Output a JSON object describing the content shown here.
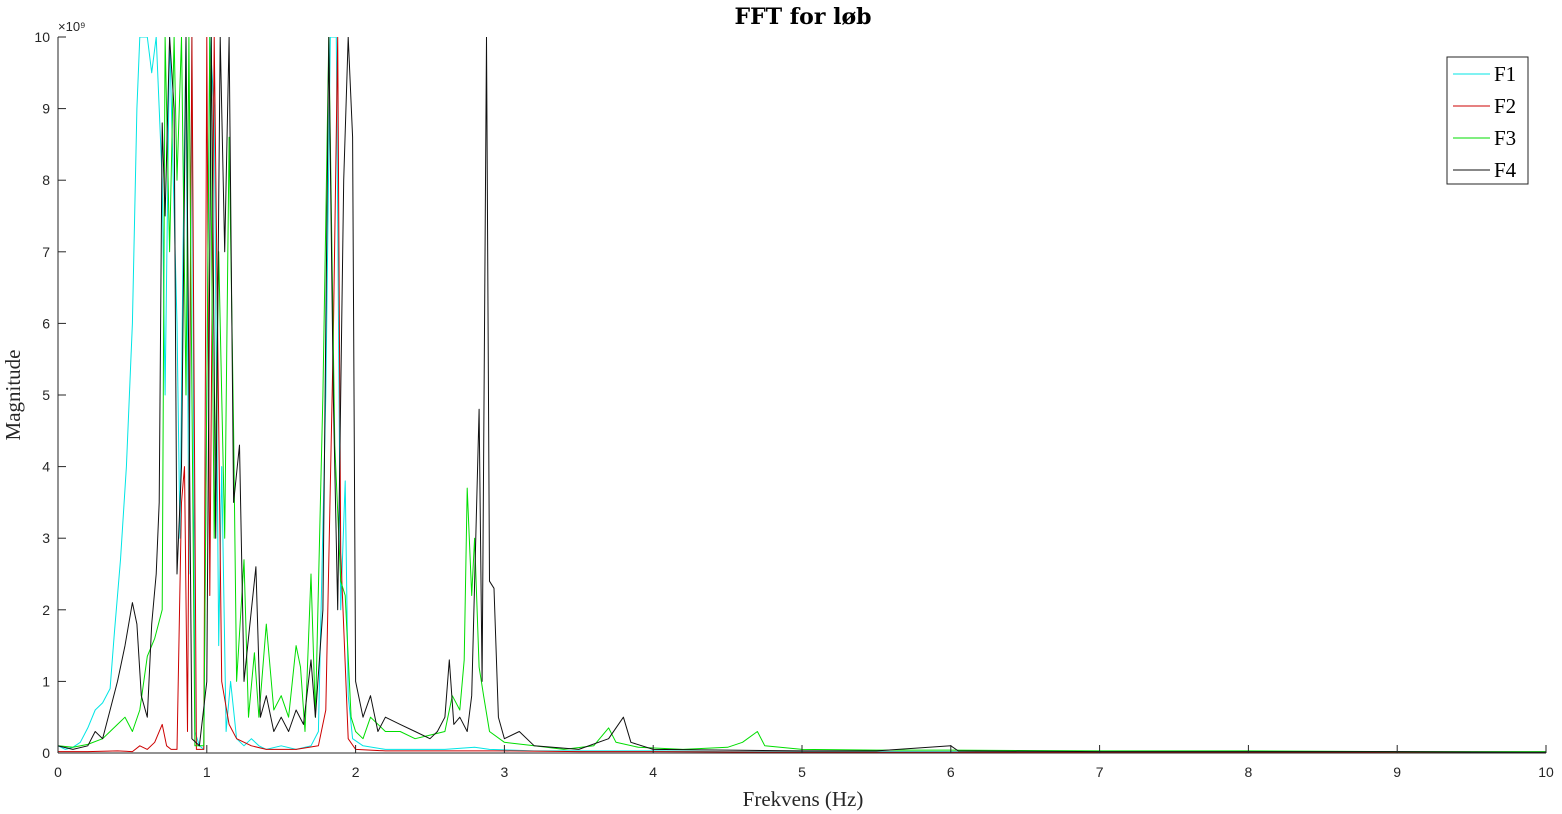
{
  "chart_data": {
    "type": "line",
    "title": "FFT for løb",
    "xlabel": "Frekvens (Hz)",
    "ylabel": "Magnitude",
    "xlim": [
      0,
      10
    ],
    "ylim": [
      0,
      10
    ],
    "y_exponent_label": "×10⁹",
    "x_ticks": [
      "0",
      "1",
      "2",
      "3",
      "4",
      "5",
      "6",
      "7",
      "8",
      "9",
      "10"
    ],
    "y_ticks": [
      "0",
      "1",
      "2",
      "3",
      "4",
      "5",
      "6",
      "7",
      "8",
      "9",
      "10"
    ],
    "grid": false,
    "legend_position": "top-right",
    "series": [
      {
        "name": "F1",
        "color": "#00e5e5",
        "points": [
          [
            0,
            0.1
          ],
          [
            0.05,
            0.05
          ],
          [
            0.1,
            0.08
          ],
          [
            0.15,
            0.15
          ],
          [
            0.2,
            0.35
          ],
          [
            0.25,
            0.6
          ],
          [
            0.3,
            0.7
          ],
          [
            0.35,
            0.9
          ],
          [
            0.38,
            1.7
          ],
          [
            0.42,
            2.7
          ],
          [
            0.46,
            4
          ],
          [
            0.5,
            6
          ],
          [
            0.53,
            9
          ],
          [
            0.55,
            10
          ],
          [
            0.6,
            10
          ],
          [
            0.63,
            9.5
          ],
          [
            0.66,
            10
          ],
          [
            0.7,
            8
          ],
          [
            0.72,
            5
          ],
          [
            0.75,
            10
          ],
          [
            0.8,
            6
          ],
          [
            0.82,
            3
          ],
          [
            0.84,
            7
          ],
          [
            0.86,
            10
          ],
          [
            0.88,
            2.5
          ],
          [
            0.9,
            10
          ],
          [
            0.92,
            0.3
          ],
          [
            0.95,
            0.1
          ],
          [
            0.98,
            0.05
          ],
          [
            1.02,
            10
          ],
          [
            1.05,
            9
          ],
          [
            1.08,
            1.5
          ],
          [
            1.1,
            4
          ],
          [
            1.13,
            0.3
          ],
          [
            1.16,
            1
          ],
          [
            1.2,
            0.2
          ],
          [
            1.25,
            0.1
          ],
          [
            1.3,
            0.2
          ],
          [
            1.35,
            0.1
          ],
          [
            1.4,
            0.05
          ],
          [
            1.5,
            0.1
          ],
          [
            1.6,
            0.05
          ],
          [
            1.7,
            0.1
          ],
          [
            1.75,
            0.3
          ],
          [
            1.8,
            5
          ],
          [
            1.83,
            10
          ],
          [
            1.87,
            10
          ],
          [
            1.9,
            2
          ],
          [
            1.93,
            3.8
          ],
          [
            1.95,
            0.8
          ],
          [
            1.98,
            0.2
          ],
          [
            2.05,
            0.1
          ],
          [
            2.2,
            0.05
          ],
          [
            2.4,
            0.05
          ],
          [
            2.6,
            0.05
          ],
          [
            2.8,
            0.08
          ],
          [
            2.9,
            0.05
          ],
          [
            3.2,
            0.03
          ],
          [
            3.5,
            0.03
          ],
          [
            4,
            0.03
          ],
          [
            4.5,
            0.02
          ],
          [
            5,
            0.02
          ],
          [
            6,
            0.02
          ],
          [
            7,
            0.01
          ],
          [
            8,
            0.01
          ],
          [
            9,
            0.01
          ],
          [
            10,
            0.01
          ]
        ]
      },
      {
        "name": "F2",
        "color": "#cc0000",
        "points": [
          [
            0,
            0.02
          ],
          [
            0.2,
            0.02
          ],
          [
            0.4,
            0.03
          ],
          [
            0.5,
            0.02
          ],
          [
            0.55,
            0.1
          ],
          [
            0.6,
            0.05
          ],
          [
            0.65,
            0.15
          ],
          [
            0.7,
            0.4
          ],
          [
            0.73,
            0.1
          ],
          [
            0.76,
            0.05
          ],
          [
            0.8,
            0.05
          ],
          [
            0.83,
            3.5
          ],
          [
            0.85,
            4
          ],
          [
            0.87,
            0.3
          ],
          [
            0.9,
            10
          ],
          [
            0.93,
            0.05
          ],
          [
            0.98,
            0.05
          ],
          [
            1.0,
            10
          ],
          [
            1.02,
            2.2
          ],
          [
            1.05,
            10
          ],
          [
            1.08,
            4.6
          ],
          [
            1.1,
            1
          ],
          [
            1.15,
            0.4
          ],
          [
            1.2,
            0.2
          ],
          [
            1.3,
            0.1
          ],
          [
            1.4,
            0.05
          ],
          [
            1.6,
            0.05
          ],
          [
            1.75,
            0.1
          ],
          [
            1.8,
            0.6
          ],
          [
            1.85,
            5.8
          ],
          [
            1.88,
            10
          ],
          [
            1.9,
            2.8
          ],
          [
            1.95,
            0.2
          ],
          [
            2.0,
            0.05
          ],
          [
            2.2,
            0.03
          ],
          [
            2.5,
            0.03
          ],
          [
            2.8,
            0.03
          ],
          [
            3,
            0.03
          ],
          [
            3.5,
            0.02
          ],
          [
            4,
            0.02
          ],
          [
            5,
            0.01
          ],
          [
            6,
            0.01
          ],
          [
            7,
            0.01
          ],
          [
            8,
            0.01
          ],
          [
            9,
            0.01
          ],
          [
            10,
            0.01
          ]
        ]
      },
      {
        "name": "F3",
        "color": "#00dd00",
        "points": [
          [
            0,
            0.1
          ],
          [
            0.1,
            0.08
          ],
          [
            0.2,
            0.12
          ],
          [
            0.3,
            0.2
          ],
          [
            0.35,
            0.3
          ],
          [
            0.4,
            0.4
          ],
          [
            0.45,
            0.5
          ],
          [
            0.5,
            0.3
          ],
          [
            0.55,
            0.6
          ],
          [
            0.6,
            1.35
          ],
          [
            0.65,
            1.6
          ],
          [
            0.7,
            2
          ],
          [
            0.72,
            10
          ],
          [
            0.75,
            7
          ],
          [
            0.78,
            10
          ],
          [
            0.8,
            8
          ],
          [
            0.83,
            10
          ],
          [
            0.86,
            5
          ],
          [
            0.88,
            10
          ],
          [
            0.92,
            0.1
          ],
          [
            0.98,
            0.1
          ],
          [
            1.02,
            10
          ],
          [
            1.05,
            3
          ],
          [
            1.08,
            7
          ],
          [
            1.12,
            3
          ],
          [
            1.15,
            8.6
          ],
          [
            1.18,
            4.5
          ],
          [
            1.2,
            1
          ],
          [
            1.25,
            2.7
          ],
          [
            1.28,
            0.5
          ],
          [
            1.32,
            1.4
          ],
          [
            1.35,
            0.5
          ],
          [
            1.4,
            1.8
          ],
          [
            1.45,
            0.6
          ],
          [
            1.5,
            0.8
          ],
          [
            1.55,
            0.5
          ],
          [
            1.6,
            1.5
          ],
          [
            1.63,
            1.2
          ],
          [
            1.66,
            0.3
          ],
          [
            1.7,
            2.5
          ],
          [
            1.73,
            0.5
          ],
          [
            1.78,
            5
          ],
          [
            1.82,
            10
          ],
          [
            1.86,
            4.3
          ],
          [
            1.9,
            2.4
          ],
          [
            1.93,
            2.2
          ],
          [
            1.97,
            0.5
          ],
          [
            2.0,
            0.3
          ],
          [
            2.05,
            0.2
          ],
          [
            2.1,
            0.5
          ],
          [
            2.2,
            0.3
          ],
          [
            2.3,
            0.3
          ],
          [
            2.4,
            0.2
          ],
          [
            2.5,
            0.25
          ],
          [
            2.6,
            0.3
          ],
          [
            2.65,
            0.8
          ],
          [
            2.7,
            0.6
          ],
          [
            2.73,
            1.3
          ],
          [
            2.75,
            3.7
          ],
          [
            2.78,
            2.2
          ],
          [
            2.8,
            3
          ],
          [
            2.83,
            1.2
          ],
          [
            2.86,
            0.8
          ],
          [
            2.9,
            0.3
          ],
          [
            3.0,
            0.15
          ],
          [
            3.2,
            0.1
          ],
          [
            3.4,
            0.05
          ],
          [
            3.6,
            0.1
          ],
          [
            3.7,
            0.35
          ],
          [
            3.75,
            0.15
          ],
          [
            3.9,
            0.08
          ],
          [
            4.2,
            0.05
          ],
          [
            4.5,
            0.08
          ],
          [
            4.6,
            0.15
          ],
          [
            4.7,
            0.3
          ],
          [
            4.75,
            0.1
          ],
          [
            5,
            0.05
          ],
          [
            5.5,
            0.04
          ],
          [
            6,
            0.04
          ],
          [
            7,
            0.03
          ],
          [
            8,
            0.03
          ],
          [
            9,
            0.02
          ],
          [
            10,
            0.02
          ]
        ]
      },
      {
        "name": "F4",
        "color": "#111111",
        "points": [
          [
            0,
            0.1
          ],
          [
            0.1,
            0.05
          ],
          [
            0.2,
            0.1
          ],
          [
            0.25,
            0.3
          ],
          [
            0.3,
            0.2
          ],
          [
            0.35,
            0.6
          ],
          [
            0.4,
            1
          ],
          [
            0.45,
            1.5
          ],
          [
            0.5,
            2.1
          ],
          [
            0.53,
            1.8
          ],
          [
            0.56,
            0.8
          ],
          [
            0.6,
            0.5
          ],
          [
            0.63,
            1.8
          ],
          [
            0.66,
            2.5
          ],
          [
            0.68,
            3.5
          ],
          [
            0.7,
            8.8
          ],
          [
            0.72,
            7.5
          ],
          [
            0.75,
            10
          ],
          [
            0.78,
            9
          ],
          [
            0.8,
            2.5
          ],
          [
            0.83,
            4
          ],
          [
            0.86,
            10
          ],
          [
            0.9,
            0.2
          ],
          [
            0.95,
            0.1
          ],
          [
            1.0,
            1
          ],
          [
            1.03,
            10
          ],
          [
            1.06,
            3
          ],
          [
            1.09,
            10
          ],
          [
            1.12,
            7
          ],
          [
            1.15,
            10
          ],
          [
            1.18,
            3.5
          ],
          [
            1.22,
            4.3
          ],
          [
            1.25,
            1
          ],
          [
            1.3,
            2
          ],
          [
            1.33,
            2.6
          ],
          [
            1.36,
            0.5
          ],
          [
            1.4,
            0.8
          ],
          [
            1.45,
            0.3
          ],
          [
            1.5,
            0.5
          ],
          [
            1.55,
            0.3
          ],
          [
            1.6,
            0.6
          ],
          [
            1.65,
            0.4
          ],
          [
            1.7,
            1.3
          ],
          [
            1.73,
            0.5
          ],
          [
            1.78,
            2
          ],
          [
            1.82,
            10
          ],
          [
            1.85,
            5
          ],
          [
            1.88,
            2
          ],
          [
            1.92,
            8
          ],
          [
            1.95,
            10
          ],
          [
            1.98,
            8.6
          ],
          [
            2.0,
            1
          ],
          [
            2.05,
            0.5
          ],
          [
            2.1,
            0.8
          ],
          [
            2.15,
            0.3
          ],
          [
            2.2,
            0.5
          ],
          [
            2.3,
            0.4
          ],
          [
            2.4,
            0.3
          ],
          [
            2.5,
            0.2
          ],
          [
            2.55,
            0.3
          ],
          [
            2.6,
            0.5
          ],
          [
            2.63,
            1.3
          ],
          [
            2.66,
            0.4
          ],
          [
            2.7,
            0.5
          ],
          [
            2.75,
            0.3
          ],
          [
            2.78,
            0.8
          ],
          [
            2.83,
            4.8
          ],
          [
            2.85,
            1
          ],
          [
            2.88,
            10
          ],
          [
            2.9,
            2.4
          ],
          [
            2.93,
            2.3
          ],
          [
            2.96,
            0.5
          ],
          [
            3.0,
            0.2
          ],
          [
            3.1,
            0.3
          ],
          [
            3.2,
            0.1
          ],
          [
            3.5,
            0.05
          ],
          [
            3.7,
            0.2
          ],
          [
            3.8,
            0.5
          ],
          [
            3.85,
            0.15
          ],
          [
            4,
            0.05
          ],
          [
            4.5,
            0.04
          ],
          [
            5,
            0.03
          ],
          [
            5.5,
            0.03
          ],
          [
            6,
            0.1
          ],
          [
            6.05,
            0.03
          ],
          [
            7,
            0.02
          ],
          [
            8,
            0.02
          ],
          [
            9,
            0.02
          ],
          [
            10,
            0.01
          ]
        ]
      }
    ]
  }
}
